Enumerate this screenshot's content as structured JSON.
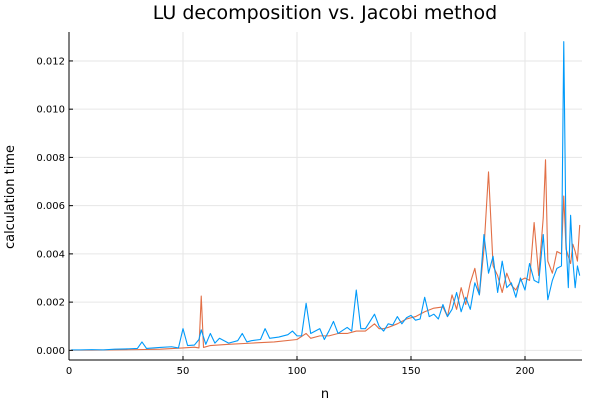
{
  "chart_data": {
    "type": "line",
    "title": "LU decomposition vs. Jacobi method",
    "xlabel": "n",
    "ylabel": "calculation time",
    "xlim": [
      0,
      225
    ],
    "ylim": [
      -0.0004,
      0.0132
    ],
    "xticks": [
      0,
      50,
      100,
      150,
      200
    ],
    "xtick_labels": [
      "0",
      "50",
      "100",
      "150",
      "200"
    ],
    "yticks": [
      0.0,
      0.002,
      0.004,
      0.006,
      0.008,
      0.01,
      0.012
    ],
    "ytick_labels": [
      "0.000",
      "0.002",
      "0.004",
      "0.006",
      "0.008",
      "0.010",
      "0.012"
    ],
    "grid": true,
    "legend": "none",
    "series": [
      {
        "color": "#009AFA",
        "points": [
          [
            1,
            2e-05
          ],
          [
            5,
            2e-05
          ],
          [
            10,
            3e-05
          ],
          [
            15,
            2e-05
          ],
          [
            20,
            5e-05
          ],
          [
            25,
            6e-05
          ],
          [
            30,
            8e-05
          ],
          [
            32,
            0.00035
          ],
          [
            34,
            8e-05
          ],
          [
            40,
            0.00012
          ],
          [
            45,
            0.00015
          ],
          [
            48,
            0.0001
          ],
          [
            50,
            0.0009
          ],
          [
            52,
            0.0002
          ],
          [
            55,
            0.00022
          ],
          [
            57,
            0.00045
          ],
          [
            58,
            0.00085
          ],
          [
            60,
            0.00025
          ],
          [
            62,
            0.0007
          ],
          [
            64,
            0.0003
          ],
          [
            66,
            0.0005
          ],
          [
            70,
            0.0003
          ],
          [
            74,
            0.0004
          ],
          [
            76,
            0.0007
          ],
          [
            78,
            0.00035
          ],
          [
            80,
            0.0004
          ],
          [
            84,
            0.00045
          ],
          [
            86,
            0.0009
          ],
          [
            88,
            0.0005
          ],
          [
            92,
            0.00055
          ],
          [
            96,
            0.00065
          ],
          [
            98,
            0.0008
          ],
          [
            100,
            0.0006
          ],
          [
            102,
            0.0006
          ],
          [
            104,
            0.00195
          ],
          [
            106,
            0.0007
          ],
          [
            110,
            0.0009
          ],
          [
            112,
            0.00045
          ],
          [
            114,
            0.0008
          ],
          [
            116,
            0.0012
          ],
          [
            118,
            0.0007
          ],
          [
            122,
            0.00095
          ],
          [
            124,
            0.0008
          ],
          [
            126,
            0.0025
          ],
          [
            128,
            0.0009
          ],
          [
            130,
            0.0009
          ],
          [
            134,
            0.0015
          ],
          [
            136,
            0.001
          ],
          [
            138,
            0.0008
          ],
          [
            140,
            0.0011
          ],
          [
            142,
            0.00105
          ],
          [
            144,
            0.0014
          ],
          [
            146,
            0.0011
          ],
          [
            148,
            0.00135
          ],
          [
            150,
            0.00145
          ],
          [
            152,
            0.00125
          ],
          [
            154,
            0.0013
          ],
          [
            156,
            0.0022
          ],
          [
            158,
            0.0014
          ],
          [
            160,
            0.0015
          ],
          [
            162,
            0.0013
          ],
          [
            164,
            0.0019
          ],
          [
            166,
            0.0014
          ],
          [
            168,
            0.0017
          ],
          [
            170,
            0.0024
          ],
          [
            172,
            0.0016
          ],
          [
            174,
            0.0022
          ],
          [
            176,
            0.0017
          ],
          [
            178,
            0.0028
          ],
          [
            180,
            0.0023
          ],
          [
            182,
            0.0048
          ],
          [
            184,
            0.0032
          ],
          [
            186,
            0.0039
          ],
          [
            188,
            0.0024
          ],
          [
            190,
            0.0037
          ],
          [
            192,
            0.0026
          ],
          [
            194,
            0.0028
          ],
          [
            196,
            0.0022
          ],
          [
            198,
            0.003
          ],
          [
            200,
            0.0025
          ],
          [
            202,
            0.0036
          ],
          [
            204,
            0.0029
          ],
          [
            206,
            0.0028
          ],
          [
            208,
            0.0048
          ],
          [
            210,
            0.0021
          ],
          [
            212,
            0.0029
          ],
          [
            214,
            0.0034
          ],
          [
            216,
            0.0035
          ],
          [
            217,
            0.0128
          ],
          [
            218,
            0.0045
          ],
          [
            219,
            0.0026
          ],
          [
            220,
            0.0056
          ],
          [
            221,
            0.0037
          ],
          [
            222,
            0.0026
          ],
          [
            223,
            0.0035
          ],
          [
            224,
            0.0031
          ]
        ]
      },
      {
        "color": "#E26F46",
        "points": [
          [
            1,
            1e-05
          ],
          [
            10,
            1e-05
          ],
          [
            20,
            2e-05
          ],
          [
            30,
            3e-05
          ],
          [
            40,
            5e-05
          ],
          [
            50,
            0.0001
          ],
          [
            55,
            0.00013
          ],
          [
            57,
            0.0001
          ],
          [
            58,
            0.00225
          ],
          [
            59,
            0.00012
          ],
          [
            62,
            0.0002
          ],
          [
            70,
            0.00025
          ],
          [
            80,
            0.0003
          ],
          [
            90,
            0.00035
          ],
          [
            100,
            0.00045
          ],
          [
            104,
            0.0007
          ],
          [
            106,
            0.0005
          ],
          [
            110,
            0.0006
          ],
          [
            114,
            0.0006
          ],
          [
            118,
            0.0007
          ],
          [
            122,
            0.0007
          ],
          [
            126,
            0.0008
          ],
          [
            130,
            0.0008
          ],
          [
            134,
            0.0011
          ],
          [
            136,
            0.0009
          ],
          [
            138,
            0.0009
          ],
          [
            140,
            0.00095
          ],
          [
            144,
            0.0011
          ],
          [
            148,
            0.0013
          ],
          [
            152,
            0.0014
          ],
          [
            156,
            0.0016
          ],
          [
            160,
            0.00175
          ],
          [
            164,
            0.0018
          ],
          [
            166,
            0.0014
          ],
          [
            168,
            0.0023
          ],
          [
            170,
            0.0017
          ],
          [
            172,
            0.0026
          ],
          [
            174,
            0.0019
          ],
          [
            176,
            0.0028
          ],
          [
            178,
            0.0034
          ],
          [
            180,
            0.0023
          ],
          [
            182,
            0.0042
          ],
          [
            184,
            0.0074
          ],
          [
            186,
            0.0035
          ],
          [
            188,
            0.0031
          ],
          [
            190,
            0.0024
          ],
          [
            192,
            0.0032
          ],
          [
            194,
            0.0027
          ],
          [
            196,
            0.0025
          ],
          [
            198,
            0.0029
          ],
          [
            200,
            0.003
          ],
          [
            202,
            0.0029
          ],
          [
            204,
            0.0053
          ],
          [
            206,
            0.0031
          ],
          [
            208,
            0.0055
          ],
          [
            209,
            0.0079
          ],
          [
            210,
            0.0037
          ],
          [
            212,
            0.0032
          ],
          [
            214,
            0.0041
          ],
          [
            216,
            0.004
          ],
          [
            217,
            0.0064
          ],
          [
            218,
            0.0042
          ],
          [
            220,
            0.0036
          ],
          [
            221,
            0.0044
          ],
          [
            222,
            0.0041
          ],
          [
            223,
            0.0037
          ],
          [
            224,
            0.0052
          ]
        ]
      }
    ]
  }
}
